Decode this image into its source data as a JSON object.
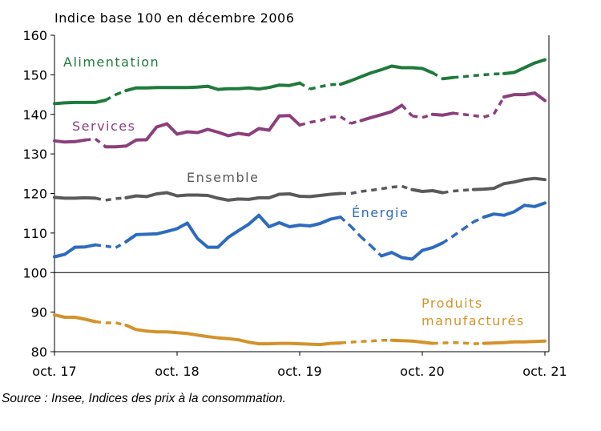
{
  "source": "Source : Insee, Indices des prix à la consommation.",
  "chart_data": {
    "type": "line",
    "ylabel": "Indice base 100 en décembre 2006",
    "ylim": [
      80,
      160
    ],
    "yticks": [
      80,
      90,
      100,
      110,
      120,
      130,
      140,
      150,
      160
    ],
    "xticks": [
      {
        "label": "oct. 17",
        "index": 0
      },
      {
        "label": "oct. 18",
        "index": 12
      },
      {
        "label": "oct. 19",
        "index": 24
      },
      {
        "label": "oct. 20",
        "index": 36
      },
      {
        "label": "oct. 21",
        "index": 48
      }
    ],
    "x_months": [
      "2017-10",
      "2017-11",
      "2017-12",
      "2018-01",
      "2018-02",
      "2018-03",
      "2018-04",
      "2018-05",
      "2018-06",
      "2018-07",
      "2018-08",
      "2018-09",
      "2018-10",
      "2018-11",
      "2018-12",
      "2019-01",
      "2019-02",
      "2019-03",
      "2019-04",
      "2019-05",
      "2019-06",
      "2019-07",
      "2019-08",
      "2019-09",
      "2019-10",
      "2019-11",
      "2019-12",
      "2020-01",
      "2020-02",
      "2020-03",
      "2020-04",
      "2020-05",
      "2020-06",
      "2020-07",
      "2020-08",
      "2020-09",
      "2020-10",
      "2020-11",
      "2020-12",
      "2021-01",
      "2021-02",
      "2021-03",
      "2021-04",
      "2021-05",
      "2021-06",
      "2021-07",
      "2021-08",
      "2021-09",
      "2021-10"
    ],
    "grid": false,
    "reference_line": 100,
    "series": [
      {
        "name": "Alimentation",
        "color": "#1f7a3c",
        "values": [
          142.7,
          142.9,
          143.0,
          143.0,
          143.0,
          143.6,
          145.0,
          146.0,
          146.7,
          146.7,
          146.8,
          146.8,
          146.8,
          146.8,
          146.9,
          147.1,
          146.3,
          146.5,
          146.5,
          146.7,
          146.4,
          146.8,
          147.4,
          147.3,
          147.9,
          146.4,
          147.0,
          147.5,
          147.6,
          148.5,
          149.5,
          150.5,
          151.3,
          152.2,
          151.8,
          151.8,
          151.6,
          150.5,
          149.0,
          149.3,
          149.5,
          149.8,
          150.0,
          150.2,
          150.3,
          150.6,
          151.8,
          153.0,
          153.8
        ],
        "gaps": [
          [
            5,
            7
          ],
          [
            24,
            28
          ],
          [
            37,
            38
          ],
          [
            39,
            44
          ]
        ]
      },
      {
        "name": "Services",
        "color": "#8b3f7d",
        "values": [
          133.3,
          133.0,
          133.1,
          133.5,
          133.8,
          131.8,
          131.8,
          132.0,
          133.5,
          133.6,
          136.8,
          137.6,
          135.0,
          135.6,
          135.4,
          136.2,
          135.5,
          134.6,
          135.2,
          134.8,
          136.4,
          136.0,
          139.6,
          139.7,
          137.3,
          138.0,
          138.4,
          139.3,
          139.4,
          137.7,
          138.4,
          139.2,
          139.9,
          140.7,
          142.3,
          139.6,
          139.2,
          140.0,
          139.8,
          140.3,
          140.0,
          139.7,
          139.3,
          140.1,
          144.4,
          145.0,
          145.0,
          145.4,
          143.5
        ],
        "gaps": [
          [
            3,
            5
          ],
          [
            24,
            30
          ],
          [
            34,
            37
          ],
          [
            39,
            44
          ]
        ]
      },
      {
        "name": "Ensemble",
        "color": "#5a5a5a",
        "values": [
          119.0,
          118.8,
          118.8,
          118.9,
          118.8,
          118.3,
          118.7,
          118.9,
          119.4,
          119.2,
          119.9,
          120.2,
          119.4,
          119.6,
          119.6,
          119.5,
          118.8,
          118.3,
          118.6,
          118.5,
          118.9,
          118.9,
          119.8,
          119.9,
          119.3,
          119.2,
          119.5,
          119.8,
          120.0,
          120.0,
          120.5,
          120.8,
          121.2,
          121.6,
          121.8,
          121.0,
          120.5,
          120.7,
          120.2,
          120.6,
          120.8,
          121.0,
          121.1,
          121.3,
          122.5,
          122.9,
          123.5,
          123.8,
          123.5
        ],
        "gaps": [
          [
            4,
            7
          ],
          [
            28,
            35
          ],
          [
            38,
            41
          ]
        ]
      },
      {
        "name": "Énergie",
        "color": "#2e6bbf",
        "values": [
          104.0,
          104.6,
          106.4,
          106.5,
          107.0,
          106.7,
          106.3,
          107.8,
          109.6,
          109.7,
          109.8,
          110.4,
          111.1,
          112.5,
          108.6,
          106.4,
          106.4,
          108.9,
          110.6,
          112.2,
          114.5,
          111.6,
          112.6,
          111.6,
          112.0,
          111.8,
          112.4,
          113.5,
          114.0,
          111.7,
          109.0,
          106.7,
          104.2,
          105.1,
          103.8,
          103.4,
          105.6,
          106.3,
          107.5,
          109.2,
          111.0,
          112.8,
          114.0,
          114.8,
          114.5,
          115.4,
          117.0,
          116.7,
          117.6
        ],
        "gaps": [
          [
            4,
            7
          ],
          [
            28,
            32
          ],
          [
            38,
            42
          ]
        ]
      },
      {
        "name": "Produits manufacturés",
        "color": "#d4922a",
        "values": [
          89.3,
          88.7,
          88.7,
          88.2,
          87.6,
          87.3,
          87.3,
          86.7,
          85.6,
          85.2,
          85.0,
          85.0,
          84.8,
          84.6,
          84.2,
          83.8,
          83.5,
          83.3,
          83.0,
          82.4,
          82.0,
          82.0,
          82.1,
          82.1,
          82.0,
          81.9,
          81.8,
          82.1,
          82.2,
          82.4,
          82.6,
          82.7,
          82.9,
          82.9,
          82.8,
          82.7,
          82.4,
          82.1,
          82.2,
          82.3,
          82.2,
          82.0,
          82.1,
          82.2,
          82.3,
          82.5,
          82.5,
          82.6,
          82.7
        ],
        "gaps": [
          [
            4,
            7
          ],
          [
            28,
            33
          ],
          [
            37,
            42
          ]
        ]
      }
    ]
  }
}
